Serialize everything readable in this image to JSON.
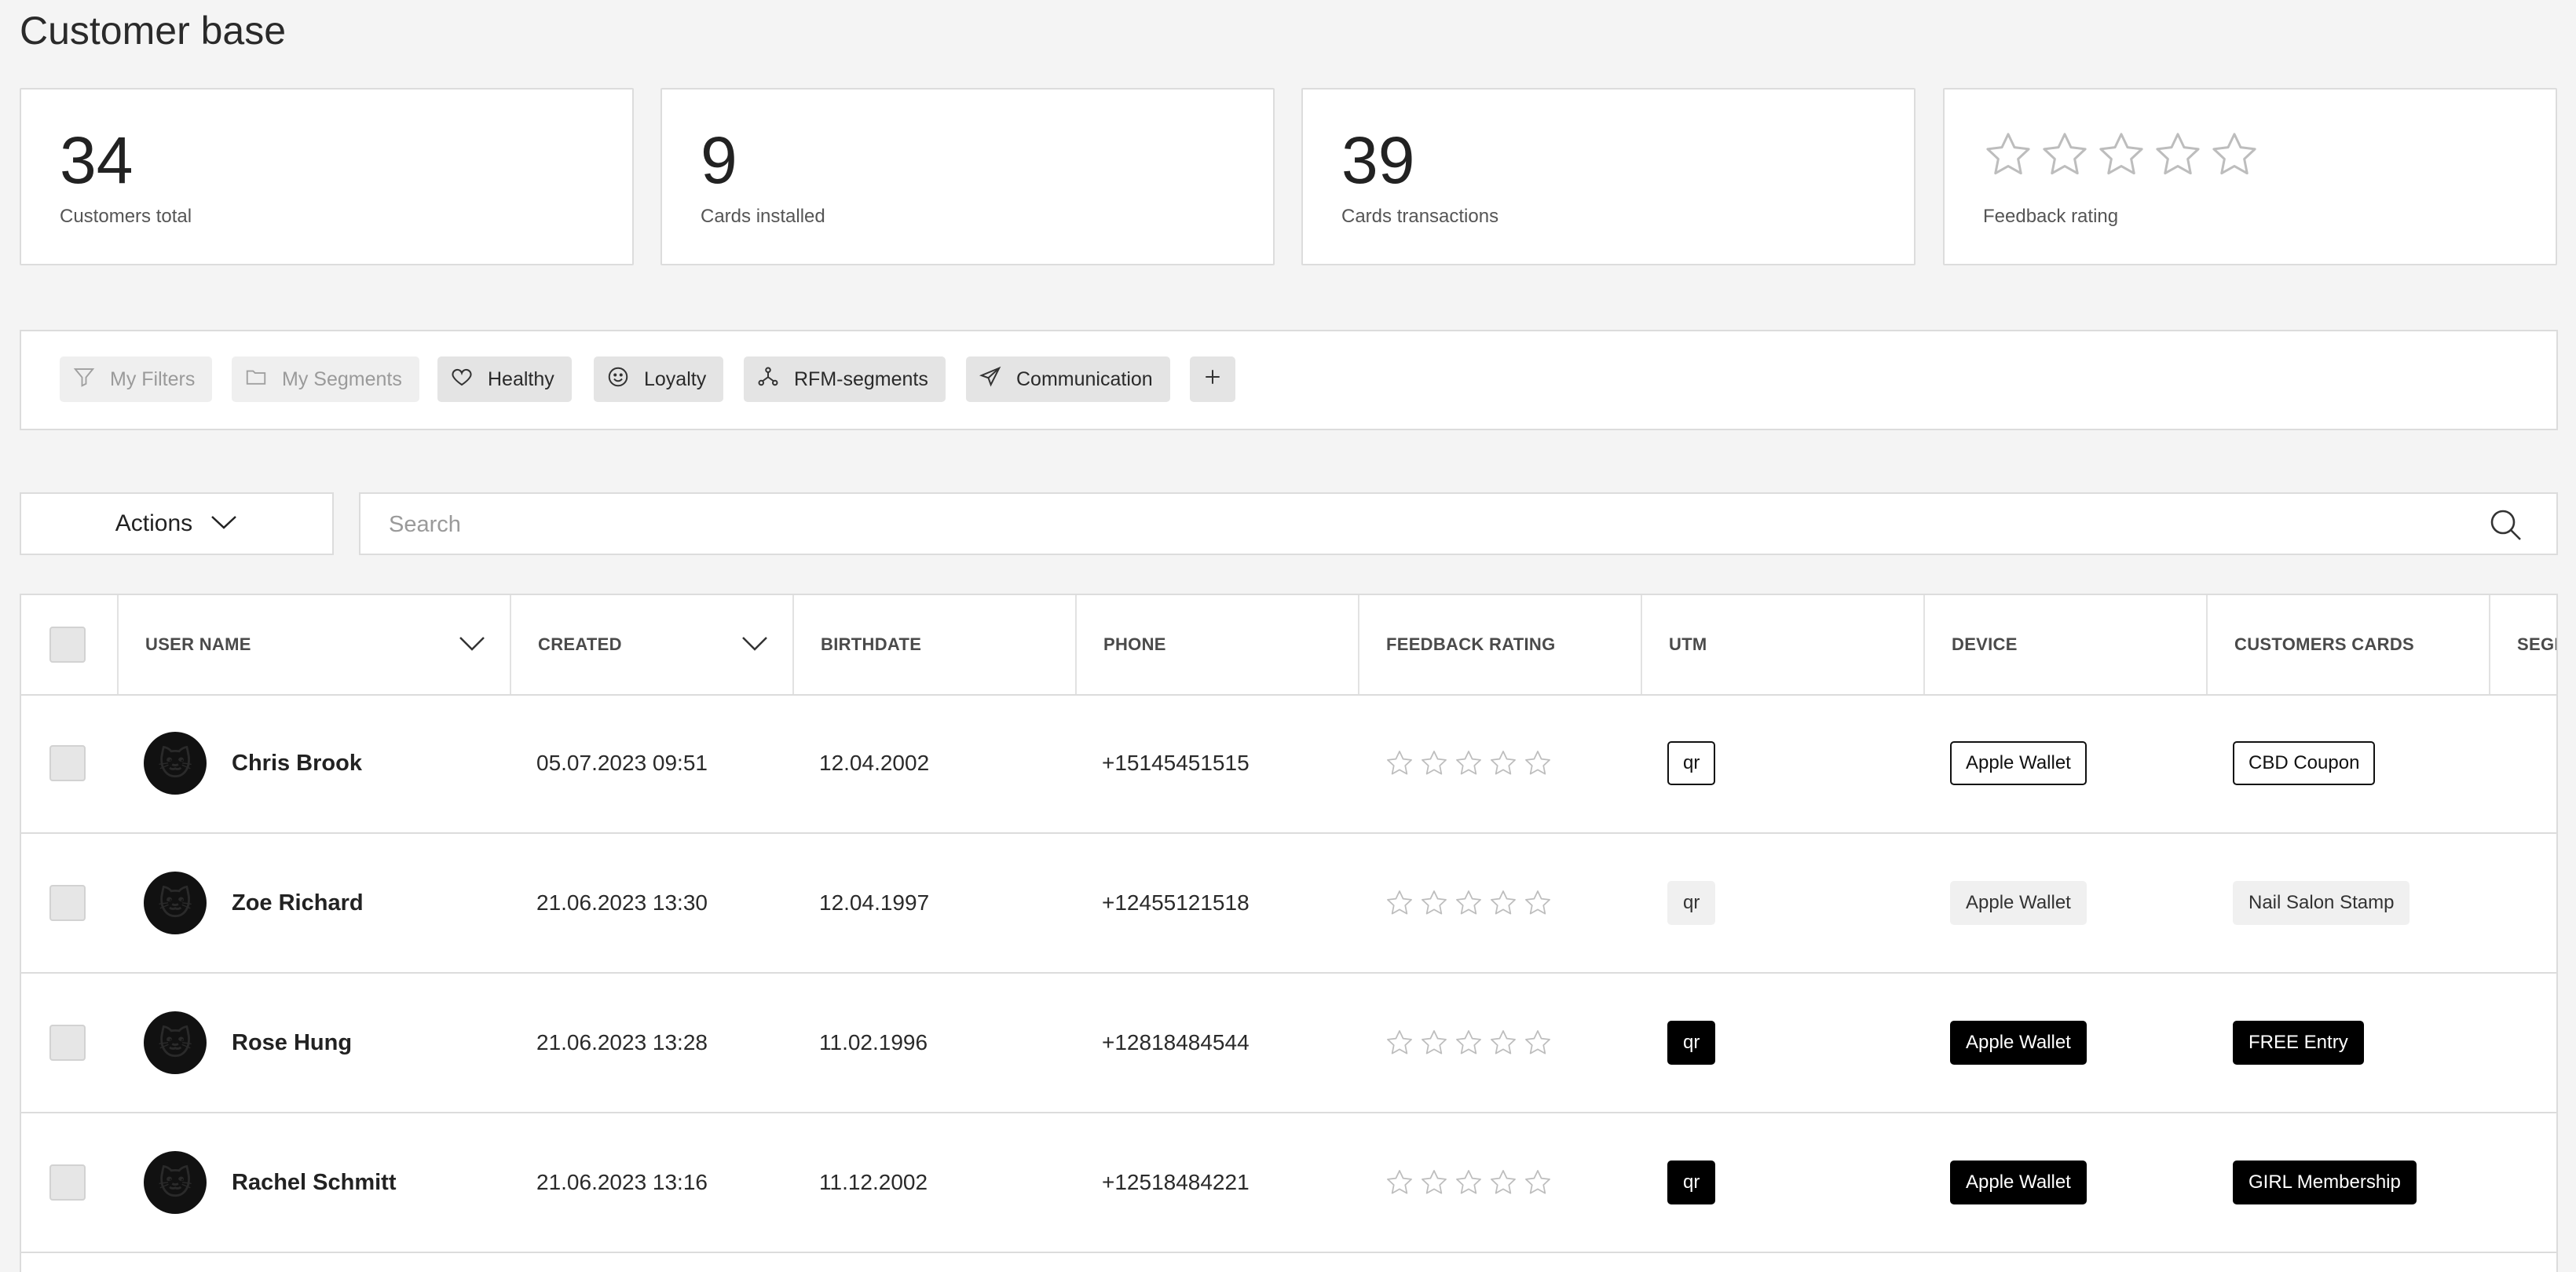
{
  "page": {
    "title": "Customer base"
  },
  "stats": [
    {
      "value": "34",
      "label": "Customers total"
    },
    {
      "value": "9",
      "label": "Cards installed"
    },
    {
      "value": "39",
      "label": "Cards transactions"
    },
    {
      "value": "",
      "label": "Feedback rating",
      "rating": 0,
      "max": 5
    }
  ],
  "segments": [
    {
      "label": "My Filters",
      "icon": "filter-icon",
      "muted": true
    },
    {
      "label": "My Segments",
      "icon": "folder-icon",
      "muted": true
    },
    {
      "label": "Healthy",
      "icon": "heart-icon",
      "muted": false
    },
    {
      "label": "Loyalty",
      "icon": "smile-icon",
      "muted": false
    },
    {
      "label": "RFM-segments",
      "icon": "segments-icon",
      "muted": false
    },
    {
      "label": "Communication",
      "icon": "send-icon",
      "muted": false
    }
  ],
  "actions": {
    "label": "Actions"
  },
  "search": {
    "placeholder": "Search",
    "value": ""
  },
  "table": {
    "columns": [
      "USER NAME",
      "CREATED",
      "BIRTHDATE",
      "PHONE",
      "FEEDBACK RATING",
      "UTM",
      "DEVICE",
      "CUSTOMERS CARDS",
      "SEGM"
    ],
    "rows": [
      {
        "name": "Chris Brook",
        "created": "05.07.2023 09:51",
        "birthdate": "12.04.2002",
        "phone": "+15145451515",
        "rating": 0,
        "utm": "qr",
        "device": "Apple Wallet",
        "card": "CBD Coupon",
        "style": "outline"
      },
      {
        "name": "Zoe Richard",
        "created": "21.06.2023 13:30",
        "birthdate": "12.04.1997",
        "phone": "+12455121518",
        "rating": 0,
        "utm": "qr",
        "device": "Apple Wallet",
        "card": "Nail Salon Stamp",
        "style": "grey"
      },
      {
        "name": "Rose Hung",
        "created": "21.06.2023 13:28",
        "birthdate": "11.02.1996",
        "phone": "+12818484544",
        "rating": 0,
        "utm": "qr",
        "device": "Apple Wallet",
        "card": "FREE Entry",
        "style": "black"
      },
      {
        "name": "Rachel Schmitt",
        "created": "21.06.2023 13:16",
        "birthdate": "11.12.2002",
        "phone": "+12518484221",
        "rating": 0,
        "utm": "qr",
        "device": "Apple Wallet",
        "card": "GIRL Membership",
        "style": "black"
      }
    ]
  },
  "colors": {
    "background": "#f4f4f4",
    "card": "#ffffff",
    "border": "#dcdcdc",
    "accent": "#000000"
  }
}
